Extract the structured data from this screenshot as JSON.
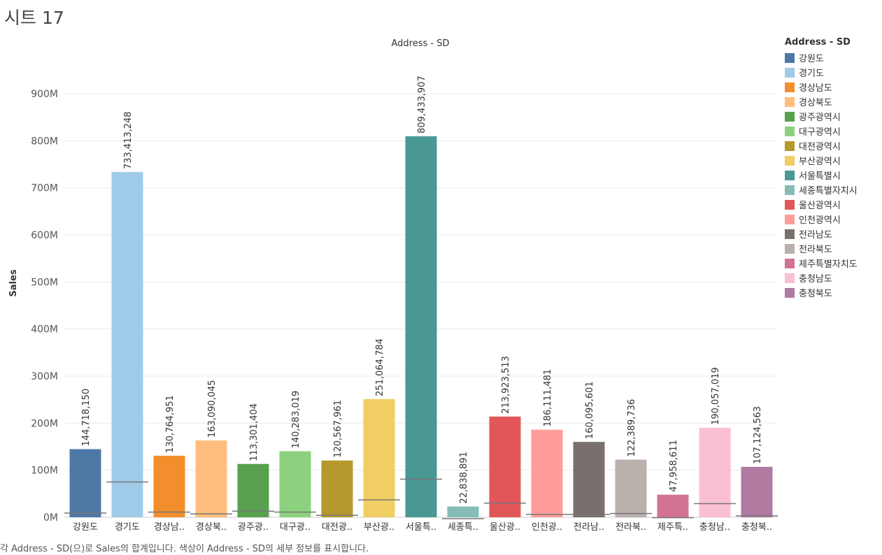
{
  "sheet": {
    "title": "시트 17"
  },
  "caption": "각 Address - SD(으)로 Sales의 합계입니다. 색상이 Address - SD의 세부 정보를 표시합니다.",
  "legend": {
    "title": "Address - SD"
  },
  "chart_data": {
    "type": "bar",
    "title": "Address - SD",
    "xlabel": "",
    "ylabel": "Sales",
    "ylim": [
      0,
      900000000
    ],
    "yticks": [
      0,
      100000000,
      200000000,
      300000000,
      400000000,
      500000000,
      600000000,
      700000000,
      800000000,
      900000000
    ],
    "ytick_labels": [
      "0M",
      "100M",
      "200M",
      "300M",
      "400M",
      "500M",
      "600M",
      "700M",
      "800M",
      "900M"
    ],
    "grid": true,
    "legend_position": "right",
    "categories": [
      "강원도",
      "경기도",
      "경상남도",
      "경상북도",
      "광주광역시",
      "대구광역시",
      "대전광역시",
      "부산광역시",
      "서울특별시",
      "세종특별자치시",
      "울산광역시",
      "인천광역시",
      "전라남도",
      "전라북도",
      "제주특별자치도",
      "충청남도",
      "충청북도"
    ],
    "tick_labels": [
      "강원도",
      "경기도",
      "경상남..",
      "경상북..",
      "광주광..",
      "대구광..",
      "대전광..",
      "부산광..",
      "서울특..",
      "세종특..",
      "울산광..",
      "인천광..",
      "전라남..",
      "전라북..",
      "제주특..",
      "충청남..",
      "충청북.."
    ],
    "values": [
      144718150,
      733413248,
      130764951,
      163090045,
      113301404,
      140283019,
      120567961,
      251064784,
      809433907,
      22838891,
      213923513,
      186111481,
      160095601,
      122389736,
      47958611,
      190057019,
      107124563
    ],
    "value_labels": [
      "144,718,150",
      "733,413,248",
      "130,764,951",
      "163,090,045",
      "113,301,404",
      "140,283,019",
      "120,567,961",
      "251,064,784",
      "809,433,907",
      "22,838,891",
      "213,923,513",
      "186,111,481",
      "160,095,601",
      "122,389,736",
      "47,958,611",
      "190,057,019",
      "107,124,563"
    ],
    "reference_lines": [
      9000000,
      75000000,
      11000000,
      7000000,
      13000000,
      11000000,
      4000000,
      37000000,
      81000000,
      -3000000,
      30000000,
      6000000,
      6000000,
      8000000,
      -1000000,
      29000000,
      3000000
    ],
    "colors": [
      "#4e79a7",
      "#a0cbe8",
      "#f28e2b",
      "#ffbe7d",
      "#59a14f",
      "#8cd17d",
      "#b6992d",
      "#f1ce63",
      "#499894",
      "#86bcb6",
      "#e15759",
      "#ff9d9a",
      "#79706e",
      "#bab0ac",
      "#d37295",
      "#fabfd2",
      "#b07aa1"
    ]
  }
}
